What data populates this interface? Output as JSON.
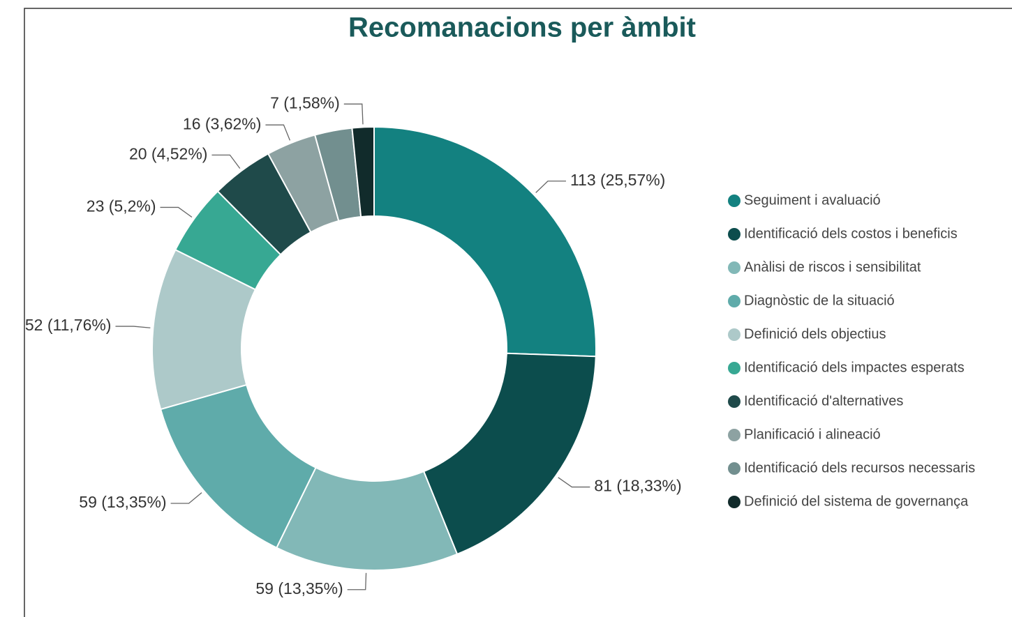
{
  "chart_data": {
    "type": "donut",
    "title": "Recomanacions per àmbit",
    "categories": [
      "Seguiment i avaluació",
      "Identificació dels costos i beneficis",
      "Anàlisi de riscos i sensibilitat",
      "Diagnòstic de la situació",
      "Definició dels objectius",
      "Identificació dels impactes esperats",
      "Identificació d'alternatives",
      "Planificació i alineació",
      "Identificació dels recursos necessaris",
      "Definició del sistema de governança"
    ],
    "values": [
      113,
      81,
      59,
      59,
      52,
      23,
      20,
      16,
      12,
      7
    ],
    "value_labels": [
      "113 (25,57%)",
      "81 (18,33%)",
      "59 (13,35%)",
      "59 (13,35%)",
      "52 (11,76%)",
      "23 (5,2%)",
      "20 (4,52%)",
      "16 (3,62%)",
      null,
      "7 (1,58%)"
    ],
    "colors": [
      "#138180",
      "#0c4d4d",
      "#82b8b7",
      "#5fabaa",
      "#adc9c9",
      "#37a893",
      "#1f4a4a",
      "#8da2a2",
      "#728f8f",
      "#112b2b"
    ],
    "legend": "right"
  }
}
